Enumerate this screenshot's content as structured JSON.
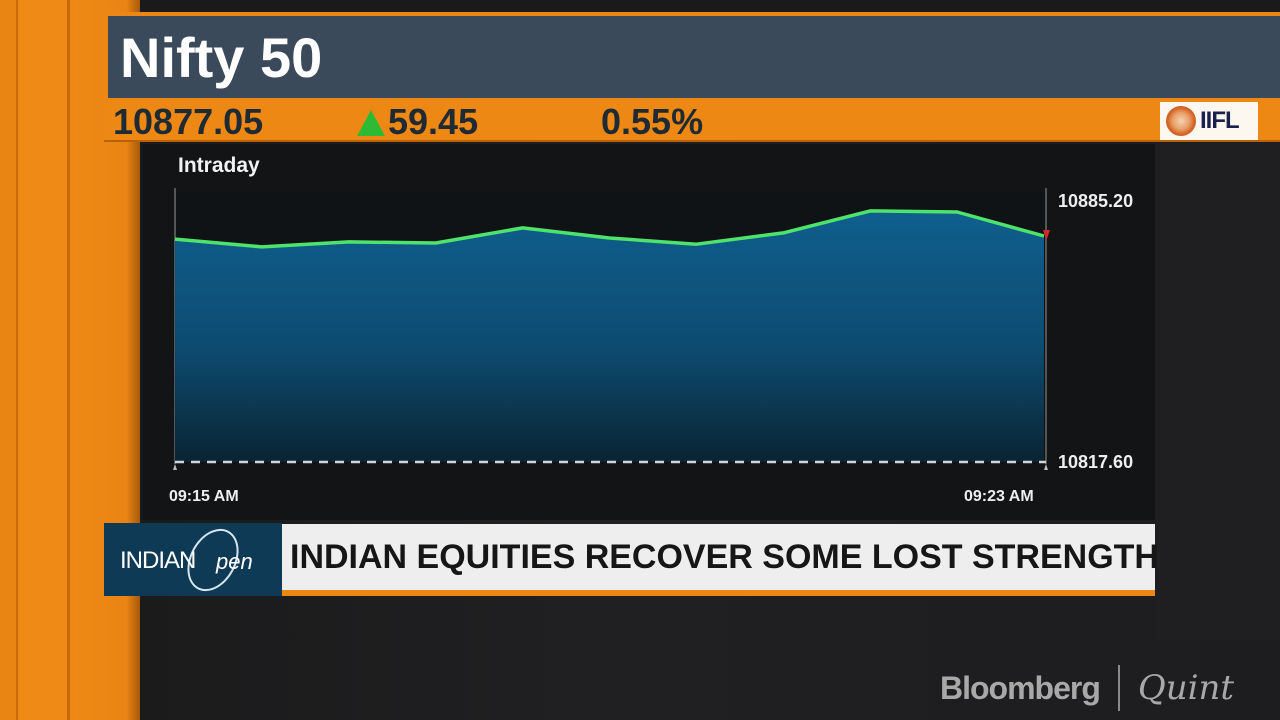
{
  "header": {
    "title": "Nifty 50",
    "price": "10877.05",
    "change": "59.45",
    "change_direction": "up",
    "change_pct": "0.55%",
    "sponsor_logo": "IIFL"
  },
  "chart": {
    "label": "Intraday",
    "y_max_label": "10885.20",
    "y_min_label": "10817.60",
    "x_start_label": "09:15 AM",
    "x_end_label": "09:23 AM"
  },
  "lower_third": {
    "show_logo_main": "INDIAN",
    "show_logo_script": "pen",
    "headline": "INDIAN EQUITIES RECOVER SOME LOST STRENGTH"
  },
  "watermark": {
    "brand": "Bloomberg",
    "brand_script": "Quint"
  },
  "colors": {
    "accent_orange": "#ed8714",
    "title_bg": "#3b4a5a",
    "line_green": "#4ee36a",
    "area_blue": "#0f5a86",
    "up_green": "#2dbb36",
    "last_marker_red": "#d8262a"
  },
  "chart_data": {
    "type": "area",
    "title": "Nifty 50 Intraday",
    "x": [
      "09:15",
      "",
      "",
      "",
      "",
      "",
      "",
      "",
      "",
      "",
      "09:23"
    ],
    "values": [
      10875.1,
      10873.1,
      10874.4,
      10874.1,
      10878.0,
      10875.4,
      10873.8,
      10876.7,
      10882.4,
      10882.1,
      10875.9
    ],
    "xlabel": "",
    "ylabel": "",
    "ylim": [
      10817.6,
      10885.2
    ],
    "y_tick_labels": [
      "10885.20",
      "10817.60"
    ],
    "x_tick_labels": [
      "09:15 AM",
      "09:23 AM"
    ],
    "baseline": 10817.6,
    "grid": false,
    "legend": null
  }
}
